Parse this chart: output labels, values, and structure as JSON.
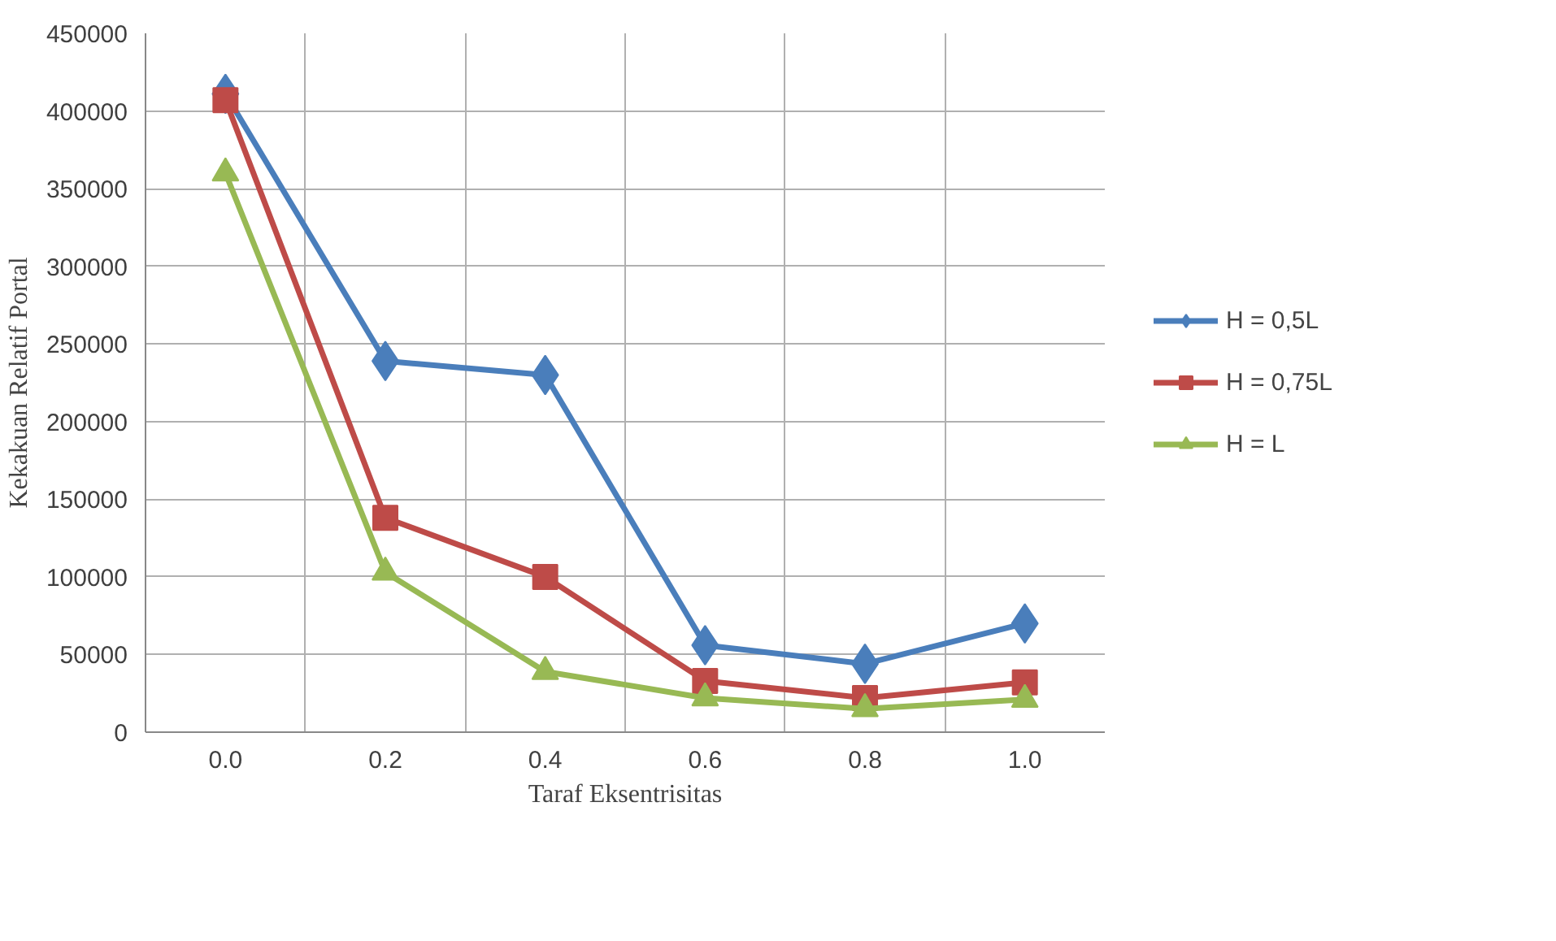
{
  "chart_data": {
    "type": "line",
    "xlabel": "Taraf Eksentrisitas",
    "ylabel": "Kekakuan Relatif Portal",
    "categories": [
      "0.0",
      "0.2",
      "0.4",
      "0.6",
      "0.8",
      "1.0"
    ],
    "series": [
      {
        "name": "H = 0,5L",
        "color": "#4a7ebb",
        "marker": "diamond",
        "values": [
          411000,
          239000,
          230000,
          56000,
          44000,
          70000
        ]
      },
      {
        "name": "H = 0,75L",
        "color": "#be4b48",
        "marker": "square",
        "values": [
          407000,
          138000,
          100000,
          33000,
          22000,
          32000
        ]
      },
      {
        "name": "H = L",
        "color": "#98b954",
        "marker": "triangle",
        "values": [
          360000,
          103000,
          39000,
          22000,
          15000,
          21000
        ]
      }
    ],
    "ylim": [
      0,
      450000
    ],
    "yticks": [
      0,
      50000,
      100000,
      150000,
      200000,
      250000,
      300000,
      350000,
      400000,
      450000
    ],
    "grid": true,
    "legend": "right",
    "line_style": "solid"
  }
}
